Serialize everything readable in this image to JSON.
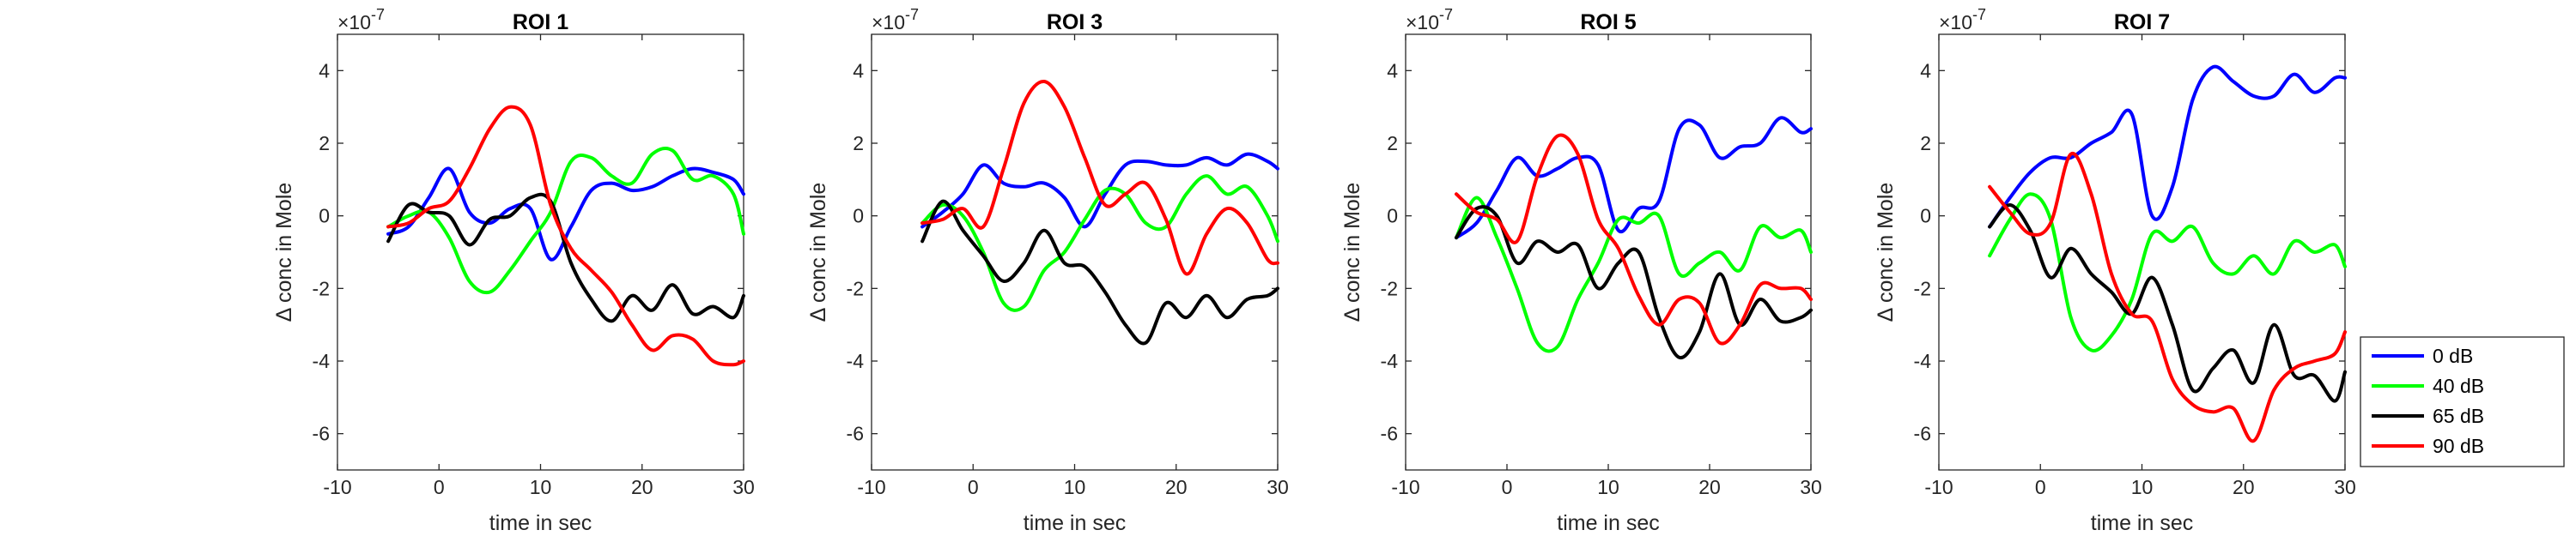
{
  "chart_data": [
    {
      "type": "line",
      "title": "ROI 1",
      "xlabel": "time in sec",
      "ylabel": "Δ conc in Mole",
      "y_exponent": "×10^-7",
      "xlim": [
        -10,
        30
      ],
      "ylim": [
        -7,
        5
      ],
      "xticks": [
        -10,
        0,
        10,
        20,
        30
      ],
      "yticks": [
        -6,
        -4,
        -2,
        0,
        2,
        4
      ],
      "grid": false,
      "x": [
        -5,
        -3,
        -1,
        1,
        3,
        5,
        7,
        9,
        11,
        13,
        15,
        17,
        19,
        21,
        23,
        25,
        27,
        29,
        30
      ],
      "series": [
        {
          "name": "0 dB",
          "color": "#0000ff",
          "values": [
            -0.5,
            -0.3,
            0.5,
            1.3,
            0.1,
            -0.2,
            0.2,
            0.2,
            -1.2,
            -0.3,
            0.7,
            0.9,
            0.7,
            0.8,
            1.1,
            1.3,
            1.2,
            1.0,
            0.6
          ]
        },
        {
          "name": "40 dB",
          "color": "#00ff00",
          "values": [
            -0.3,
            0.0,
            0.1,
            -0.6,
            -1.8,
            -2.1,
            -1.5,
            -0.7,
            0.1,
            1.5,
            1.6,
            1.1,
            0.9,
            1.7,
            1.8,
            1.0,
            1.1,
            0.6,
            -0.5
          ]
        },
        {
          "name": "65 dB",
          "color": "#000000",
          "values": [
            -0.7,
            0.3,
            0.1,
            0.0,
            -0.8,
            -0.1,
            0.0,
            0.5,
            0.4,
            -1.3,
            -2.3,
            -2.9,
            -2.2,
            -2.6,
            -1.9,
            -2.7,
            -2.5,
            -2.8,
            -2.2
          ]
        },
        {
          "name": "90 dB",
          "color": "#ff0000",
          "values": [
            -0.3,
            -0.2,
            0.2,
            0.4,
            1.3,
            2.4,
            3.0,
            2.5,
            0.3,
            -0.9,
            -1.5,
            -2.1,
            -3.0,
            -3.7,
            -3.3,
            -3.4,
            -4.0,
            -4.1,
            -4.0
          ]
        }
      ]
    },
    {
      "type": "line",
      "title": "ROI 3",
      "xlabel": "time in sec",
      "ylabel": "Δ conc in Mole",
      "y_exponent": "×10^-7",
      "xlim": [
        -10,
        30
      ],
      "ylim": [
        -7,
        5
      ],
      "xticks": [
        -10,
        0,
        10,
        20,
        30
      ],
      "yticks": [
        -6,
        -4,
        -2,
        0,
        2,
        4
      ],
      "grid": false,
      "x": [
        -5,
        -3,
        -1,
        1,
        3,
        5,
        7,
        9,
        11,
        13,
        15,
        17,
        19,
        21,
        23,
        25,
        27,
        29,
        30
      ],
      "series": [
        {
          "name": "0 dB",
          "color": "#0000ff",
          "values": [
            -0.3,
            0.1,
            0.6,
            1.4,
            0.9,
            0.8,
            0.9,
            0.5,
            -0.3,
            0.6,
            1.4,
            1.5,
            1.4,
            1.4,
            1.6,
            1.4,
            1.7,
            1.5,
            1.3
          ]
        },
        {
          "name": "40 dB",
          "color": "#00ff00",
          "values": [
            -0.2,
            0.3,
            0.0,
            -1.0,
            -2.4,
            -2.5,
            -1.5,
            -1.0,
            -0.1,
            0.7,
            0.6,
            -0.2,
            -0.3,
            0.6,
            1.1,
            0.6,
            0.8,
            0.0,
            -0.7
          ]
        },
        {
          "name": "65 dB",
          "color": "#000000",
          "values": [
            -0.7,
            0.4,
            -0.4,
            -1.1,
            -1.8,
            -1.3,
            -0.4,
            -1.3,
            -1.4,
            -2.1,
            -3.0,
            -3.5,
            -2.4,
            -2.8,
            -2.2,
            -2.8,
            -2.3,
            -2.2,
            -2.0
          ]
        },
        {
          "name": "90 dB",
          "color": "#ff0000",
          "values": [
            -0.2,
            -0.1,
            0.2,
            -0.3,
            1.3,
            3.1,
            3.7,
            3.0,
            1.6,
            0.3,
            0.6,
            0.9,
            -0.1,
            -1.6,
            -0.5,
            0.2,
            -0.2,
            -1.2,
            -1.3
          ]
        }
      ]
    },
    {
      "type": "line",
      "title": "ROI 5",
      "xlabel": "time in sec",
      "ylabel": "Δ conc in Mole",
      "y_exponent": "×10^-7",
      "xlim": [
        -10,
        30
      ],
      "ylim": [
        -7,
        5
      ],
      "xticks": [
        -10,
        0,
        10,
        20,
        30
      ],
      "yticks": [
        -6,
        -4,
        -2,
        0,
        2,
        4
      ],
      "grid": false,
      "x": [
        -5,
        -3,
        -1,
        1,
        3,
        5,
        7,
        9,
        11,
        13,
        15,
        17,
        19,
        21,
        23,
        25,
        27,
        29,
        30
      ],
      "series": [
        {
          "name": "0 dB",
          "color": "#0000ff",
          "values": [
            -0.6,
            -0.2,
            0.7,
            1.6,
            1.1,
            1.3,
            1.6,
            1.4,
            -0.4,
            0.2,
            0.4,
            2.4,
            2.5,
            1.6,
            1.9,
            2.0,
            2.7,
            2.3,
            2.4
          ]
        },
        {
          "name": "40 dB",
          "color": "#00ff00",
          "values": [
            -0.6,
            0.5,
            -0.6,
            -2.0,
            -3.5,
            -3.6,
            -2.3,
            -1.3,
            -0.1,
            -0.2,
            0.0,
            -1.6,
            -1.3,
            -1.0,
            -1.5,
            -0.3,
            -0.6,
            -0.4,
            -1.0
          ]
        },
        {
          "name": "65 dB",
          "color": "#000000",
          "values": [
            -0.6,
            0.2,
            0.0,
            -1.3,
            -0.7,
            -1.0,
            -0.8,
            -2.0,
            -1.3,
            -1.0,
            -2.8,
            -3.9,
            -3.2,
            -1.6,
            -3.0,
            -2.3,
            -2.9,
            -2.8,
            -2.6
          ]
        },
        {
          "name": "90 dB",
          "color": "#ff0000",
          "values": [
            0.6,
            0.1,
            -0.1,
            -0.7,
            1.1,
            2.2,
            1.7,
            -0.1,
            -0.9,
            -2.2,
            -3.0,
            -2.3,
            -2.4,
            -3.5,
            -3.0,
            -1.9,
            -2.0,
            -2.0,
            -2.3
          ]
        }
      ]
    },
    {
      "type": "line",
      "title": "ROI 7",
      "xlabel": "time in sec",
      "ylabel": "Δ conc in Mole",
      "y_exponent": "×10^-7",
      "xlim": [
        -10,
        30
      ],
      "ylim": [
        -7,
        5
      ],
      "xticks": [
        -10,
        0,
        10,
        20,
        30
      ],
      "yticks": [
        -6,
        -4,
        -2,
        0,
        2,
        4
      ],
      "grid": false,
      "x": [
        -5,
        -3,
        -1,
        1,
        3,
        5,
        7,
        9,
        11,
        13,
        15,
        17,
        19,
        21,
        23,
        25,
        27,
        29,
        30
      ],
      "series": [
        {
          "name": "0 dB",
          "color": "#0000ff",
          "values": [
            -0.3,
            0.5,
            1.2,
            1.6,
            1.6,
            2.0,
            2.3,
            2.8,
            0.0,
            0.8,
            3.2,
            4.1,
            3.7,
            3.3,
            3.3,
            3.9,
            3.4,
            3.8,
            3.8
          ]
        },
        {
          "name": "40 dB",
          "color": "#00ff00",
          "values": [
            -1.1,
            -0.1,
            0.6,
            -0.1,
            -2.8,
            -3.7,
            -3.3,
            -2.3,
            -0.5,
            -0.7,
            -0.3,
            -1.3,
            -1.6,
            -1.1,
            -1.6,
            -0.7,
            -1.0,
            -0.8,
            -1.4
          ]
        },
        {
          "name": "65 dB",
          "color": "#000000",
          "values": [
            -0.3,
            0.3,
            -0.4,
            -1.7,
            -0.9,
            -1.6,
            -2.1,
            -2.7,
            -1.7,
            -3.0,
            -4.8,
            -4.2,
            -3.7,
            -4.6,
            -3.0,
            -4.4,
            -4.4,
            -5.1,
            -4.3
          ]
        },
        {
          "name": "90 dB",
          "color": "#ff0000",
          "values": [
            0.8,
            0.1,
            -0.5,
            -0.2,
            1.7,
            0.6,
            -1.6,
            -2.7,
            -2.9,
            -4.5,
            -5.2,
            -5.4,
            -5.3,
            -6.2,
            -4.8,
            -4.2,
            -4.0,
            -3.8,
            -3.2
          ]
        }
      ]
    }
  ],
  "legend": {
    "placement": "right",
    "entries": [
      {
        "label": "0 dB",
        "color": "#0000ff"
      },
      {
        "label": "40 dB",
        "color": "#00ff00"
      },
      {
        "label": "65 dB",
        "color": "#000000"
      },
      {
        "label": "90 dB",
        "color": "#ff0000"
      }
    ]
  }
}
